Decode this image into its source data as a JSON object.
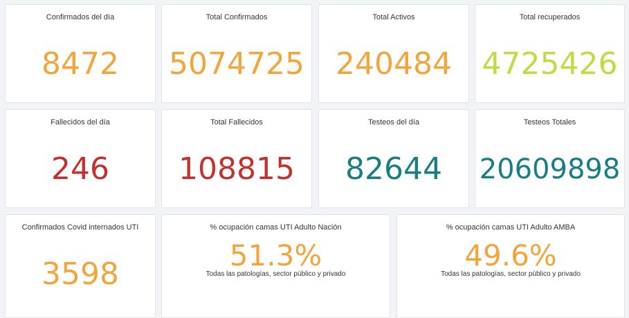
{
  "colors": {
    "orange": "#f3a43b",
    "lime": "#c7d942",
    "red": "#c5302c",
    "teal": "#177e82"
  },
  "cards": [
    {
      "title": "Confirmados del día",
      "value": "8472",
      "color": "#f3a43b"
    },
    {
      "title": "Total Confirmados",
      "value": "5074725",
      "color": "#f3a43b"
    },
    {
      "title": "Total Activos",
      "value": "240484",
      "color": "#f3a43b"
    },
    {
      "title": "Total recuperados",
      "value": "4725426",
      "color": "#c7d942"
    },
    {
      "title": "Fallecidos del día",
      "value": "246",
      "color": "#c5302c"
    },
    {
      "title": "Total Fallecidos",
      "value": "108815",
      "color": "#c5302c"
    },
    {
      "title": "Testeos del día",
      "value": "82644",
      "color": "#177e82"
    },
    {
      "title": "Testeos Totales",
      "value": "20609898",
      "color": "#177e82"
    },
    {
      "title": "Confirmados Covid internados UTI",
      "value": "3598",
      "color": "#f3a43b"
    },
    {
      "title": "% ocupación camas UTI Adulto Nación",
      "value": "51.3%",
      "subtitle": "Todas las patologías, sector público y privado",
      "color": "#f3a43b"
    },
    {
      "title": "% ocupación camas UTI Adulto AMBA",
      "value": "49.6%",
      "subtitle": "Todas las patologías, sector público y privado",
      "color": "#f3a43b"
    }
  ]
}
